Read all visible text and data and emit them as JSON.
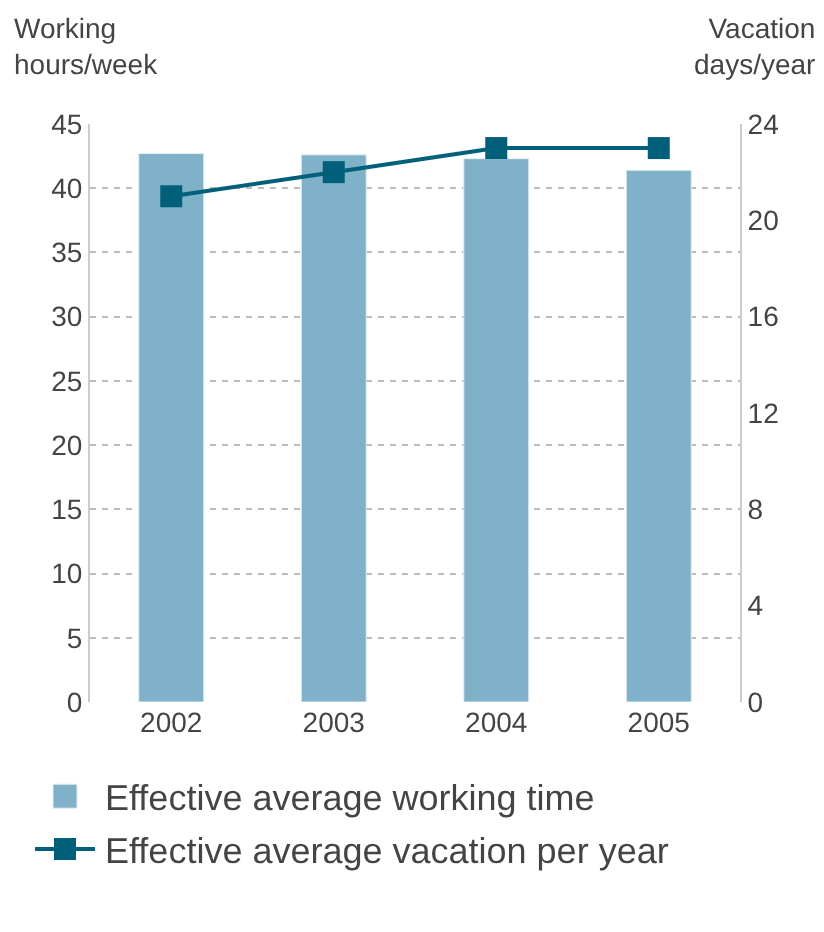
{
  "chart_data": {
    "type": "bar",
    "ylabel": "Working\nhours/week",
    "y2label": "Vacation\ndays/year",
    "categories": [
      "2002",
      "2003",
      "2004",
      "2005"
    ],
    "series": [
      {
        "name": "Effective average working time",
        "color": "#7fb2c8",
        "values": [
          42.7,
          42.6,
          42.3,
          41.4
        ]
      },
      {
        "name": "Effective average vacation per year",
        "type": "line",
        "axis": "y2",
        "color": "#00607a",
        "marker": "square",
        "values": [
          21,
          22,
          23,
          23
        ]
      }
    ],
    "ylim": [
      0,
      45
    ],
    "yticks": [
      0,
      5,
      10,
      15,
      20,
      25,
      30,
      35,
      40,
      45
    ],
    "y2lim": [
      0,
      24
    ],
    "y2ticks": [
      0,
      4,
      8,
      12,
      16,
      20,
      24
    ],
    "grid": "y",
    "legend": "bottom"
  }
}
